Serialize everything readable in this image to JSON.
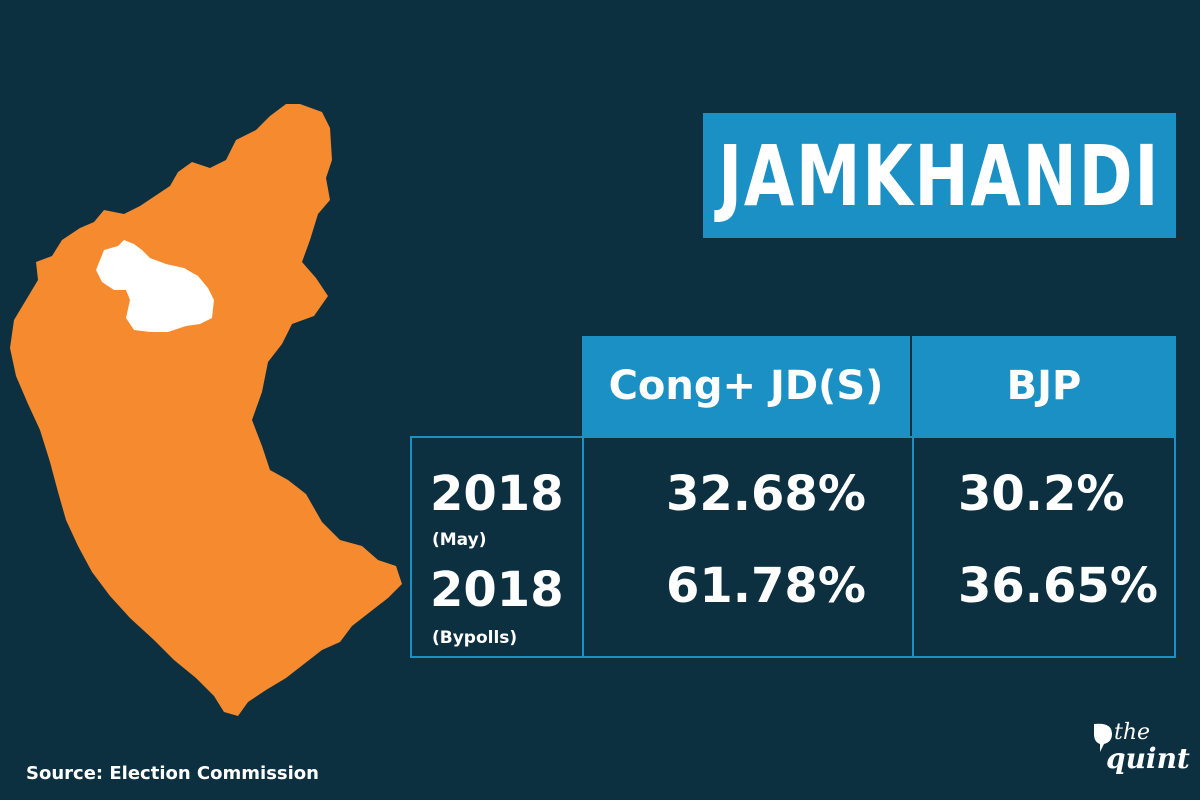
{
  "title": "JAMKHANDI",
  "table": {
    "headers": [
      "Cong+ JD(S)",
      "BJP"
    ],
    "rows": [
      {
        "year": "2018",
        "sub": "(May)",
        "values": [
          "32.68%",
          "30.2%"
        ]
      },
      {
        "year": "2018",
        "sub": "(Bypolls)",
        "values": [
          "61.78%",
          "36.65%"
        ]
      }
    ]
  },
  "source": "Source: Election Commission",
  "logo": {
    "the": "the",
    "quint": "quint"
  },
  "colors": {
    "background": "#0d3040",
    "accent": "#1b90c4",
    "map_fill": "#f58a2e",
    "highlight": "#ffffff"
  }
}
